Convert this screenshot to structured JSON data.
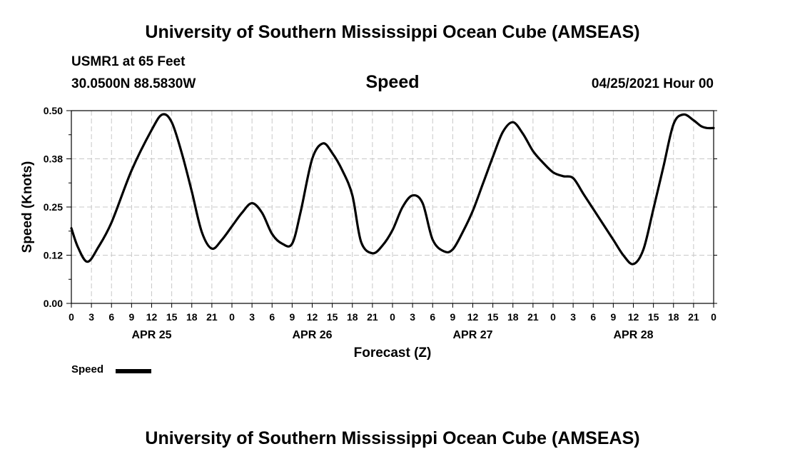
{
  "header": {
    "title": "University of Southern Mississippi Ocean Cube (AMSEAS)",
    "station": "USMR1 at 65 Feet",
    "coords": "30.0500N  88.5830W",
    "datetime": "04/25/2021 Hour 00"
  },
  "footer": {
    "title": "University of Southern Mississippi Ocean Cube (AMSEAS)"
  },
  "chart_data": {
    "type": "line",
    "title": "Speed",
    "xlabel": "Forecast (Z)",
    "ylabel": "Speed (Knots)",
    "x_unit": "hours from 04/25/2021 00Z",
    "xlim": [
      0,
      96
    ],
    "ylim": [
      0,
      0.5
    ],
    "grid": true,
    "yticks": [
      {
        "value": 0,
        "label": "0.00"
      },
      {
        "value": 0.125,
        "label": "0.12"
      },
      {
        "value": 0.25,
        "label": "0.25"
      },
      {
        "value": 0.375,
        "label": "0.38"
      },
      {
        "value": 0.5,
        "label": "0.50"
      }
    ],
    "xtick_labels": [
      "0",
      "3",
      "6",
      "9",
      "12",
      "15",
      "18",
      "21",
      "0",
      "3",
      "6",
      "9",
      "12",
      "15",
      "18",
      "21",
      "0",
      "3",
      "6",
      "9",
      "12",
      "15",
      "18",
      "21",
      "0",
      "3",
      "6",
      "9",
      "12",
      "15",
      "18",
      "21",
      "0"
    ],
    "day_labels": [
      {
        "hour": 12,
        "label": "APR 25"
      },
      {
        "hour": 36,
        "label": "APR 26"
      },
      {
        "hour": 60,
        "label": "APR 27"
      },
      {
        "hour": 84,
        "label": "APR 28"
      }
    ],
    "legend": {
      "position": "bottom-left",
      "label": "Speed"
    },
    "series": [
      {
        "name": "Speed",
        "color": "#000000",
        "x": [
          0,
          1,
          2.4,
          4,
          6,
          9,
          12,
          13.6,
          15,
          16.5,
          18,
          19.5,
          21,
          22.5,
          24,
          25.5,
          27,
          28.5,
          30,
          31.5,
          33,
          34.3,
          36,
          37.6,
          39,
          40.5,
          42,
          43.3,
          45,
          46.5,
          48,
          49.5,
          51,
          52.5,
          54,
          55.7,
          57,
          58.5,
          60,
          61.5,
          63,
          64.5,
          66,
          67.5,
          69,
          70.5,
          72,
          73.5,
          75,
          76.5,
          78,
          79.5,
          81,
          82.5,
          84,
          85.5,
          87,
          88.5,
          90,
          91.5,
          93,
          94.1,
          95,
          96
        ],
        "values": [
          0.195,
          0.145,
          0.108,
          0.145,
          0.21,
          0.345,
          0.45,
          0.49,
          0.47,
          0.39,
          0.29,
          0.185,
          0.142,
          0.165,
          0.2,
          0.235,
          0.26,
          0.235,
          0.18,
          0.155,
          0.155,
          0.24,
          0.375,
          0.415,
          0.39,
          0.345,
          0.28,
          0.16,
          0.13,
          0.15,
          0.19,
          0.25,
          0.28,
          0.26,
          0.165,
          0.135,
          0.14,
          0.185,
          0.24,
          0.31,
          0.38,
          0.445,
          0.47,
          0.44,
          0.395,
          0.365,
          0.34,
          0.33,
          0.325,
          0.285,
          0.245,
          0.205,
          0.165,
          0.125,
          0.102,
          0.14,
          0.245,
          0.355,
          0.465,
          0.49,
          0.475,
          0.46,
          0.455,
          0.455
        ]
      }
    ]
  }
}
